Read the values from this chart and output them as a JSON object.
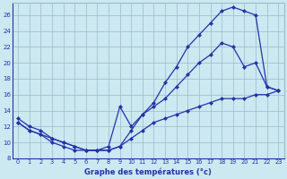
{
  "title": "Graphe des températures (°c)",
  "x": [
    0,
    1,
    2,
    3,
    4,
    5,
    6,
    7,
    8,
    9,
    10,
    11,
    12,
    13,
    14,
    15,
    16,
    17,
    18,
    19,
    20,
    21,
    22,
    23
  ],
  "line_top": [
    13.0,
    12.0,
    null,
    null,
    null,
    null,
    null,
    null,
    null,
    null,
    null,
    null,
    null,
    17.5,
    19.5,
    22.0,
    23.5,
    25.0,
    26.5,
    27.0,
    26.5,
    26.0,
    null,
    null
  ],
  "line_mid": [
    13.0,
    12.0,
    null,
    null,
    null,
    null,
    null,
    null,
    null,
    null,
    null,
    null,
    null,
    15.5,
    17.0,
    18.5,
    20.0,
    21.0,
    22.5,
    22.0,
    19.5,
    20.0,
    17.0,
    16.5
  ],
  "line_dip": [
    null,
    null,
    null,
    null,
    null,
    null,
    null,
    null,
    null,
    null,
    null,
    null,
    null,
    null,
    null,
    null,
    null,
    null,
    null,
    null,
    null,
    null,
    null,
    null
  ],
  "line_color": "#2233aa",
  "bg_color": "#cce8f0",
  "grid_color": "#99bbcc",
  "ylim": [
    8,
    27
  ],
  "xlim": [
    -0.5,
    23.5
  ],
  "yticks": [
    8,
    10,
    12,
    14,
    16,
    18,
    20,
    22,
    24,
    26
  ],
  "xticks": [
    0,
    1,
    2,
    3,
    4,
    5,
    6,
    7,
    8,
    9,
    10,
    11,
    12,
    13,
    14,
    15,
    16,
    17,
    18,
    19,
    20,
    21,
    22,
    23
  ],
  "line1": [
    13.0,
    12.0,
    11.5,
    10.5,
    10.0,
    9.5,
    9.0,
    9.0,
    9.5,
    14.5,
    12.0,
    13.5,
    15.0,
    17.5,
    19.5,
    22.0,
    23.5,
    25.0,
    26.5,
    27.0,
    26.5,
    26.0,
    17.0,
    16.5
  ],
  "line2": [
    12.5,
    11.5,
    11.0,
    10.0,
    9.5,
    9.0,
    9.0,
    9.0,
    9.0,
    9.5,
    11.5,
    13.5,
    14.5,
    15.5,
    17.0,
    18.5,
    20.0,
    21.0,
    22.5,
    22.0,
    19.5,
    20.0,
    17.0,
    16.5
  ],
  "line3": [
    12.5,
    11.5,
    11.0,
    10.5,
    10.0,
    9.5,
    9.0,
    9.0,
    9.0,
    9.5,
    10.5,
    11.5,
    12.5,
    13.0,
    13.5,
    14.0,
    14.5,
    15.0,
    15.5,
    15.5,
    15.5,
    16.0,
    16.0,
    16.5
  ]
}
